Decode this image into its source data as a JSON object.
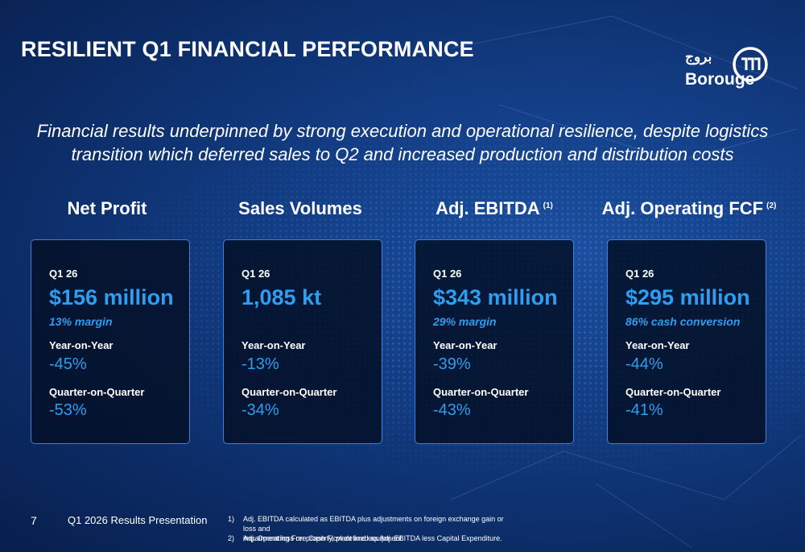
{
  "title": "RESILIENT Q1 FINANCIAL PERFORMANCE",
  "logo": {
    "arabic": "بروج",
    "name": "Borouge",
    "icon": "borouge-logo-icon"
  },
  "subtitle": {
    "line1": "Financial results underpinned by strong execution and operational resilience, despite logistics",
    "line2": "transition which deferred sales to Q2 and increased production and distribution costs"
  },
  "metrics": [
    {
      "header": "Net Profit",
      "footnote": "",
      "period": "Q1 26",
      "value": "$156 million",
      "note": "13% margin",
      "yoy_label": "Year-on-Year",
      "yoy_value": "-45%",
      "qoq_label": "Quarter-on-Quarter",
      "qoq_value": "-53%"
    },
    {
      "header": "Sales Volumes",
      "footnote": "",
      "period": "Q1 26",
      "value": "1,085 kt",
      "note": "",
      "yoy_label": "Year-on-Year",
      "yoy_value": "-13%",
      "qoq_label": "Quarter-on-Quarter",
      "qoq_value": "-34%"
    },
    {
      "header": "Adj. EBITDA",
      "footnote": "(1)",
      "period": "Q1 26",
      "value": "$343 million",
      "note": "29% margin",
      "yoy_label": "Year-on-Year",
      "yoy_value": "-39%",
      "qoq_label": "Quarter-on-Quarter",
      "qoq_value": "-43%"
    },
    {
      "header": "Adj. Operating FCF",
      "footnote": "(2)",
      "period": "Q1 26",
      "value": "$295 million",
      "note": "86% cash conversion",
      "yoy_label": "Year-on-Year",
      "yoy_value": "-44%",
      "qoq_label": "Quarter-on-Quarter",
      "qoq_value": "-41%"
    }
  ],
  "footer": {
    "page_number": "7",
    "label": "Q1 2026 Results Presentation",
    "notes": [
      {
        "num": "1)",
        "line1": "Adj. EBITDA calculated as EBITDA plus adjustments on foreign exchange gain or loss and",
        "line2": "impairment loss on property, plant and equipment."
      },
      {
        "num": "2)",
        "line1": "Adj. Operating Free Cash Flow defined as Adj. EBITDA less Capital Expenditure.",
        "line2": ""
      }
    ]
  },
  "colors": {
    "accent": "#2f9df0",
    "card_border": "#3d7fd6",
    "background": "#133e86"
  }
}
